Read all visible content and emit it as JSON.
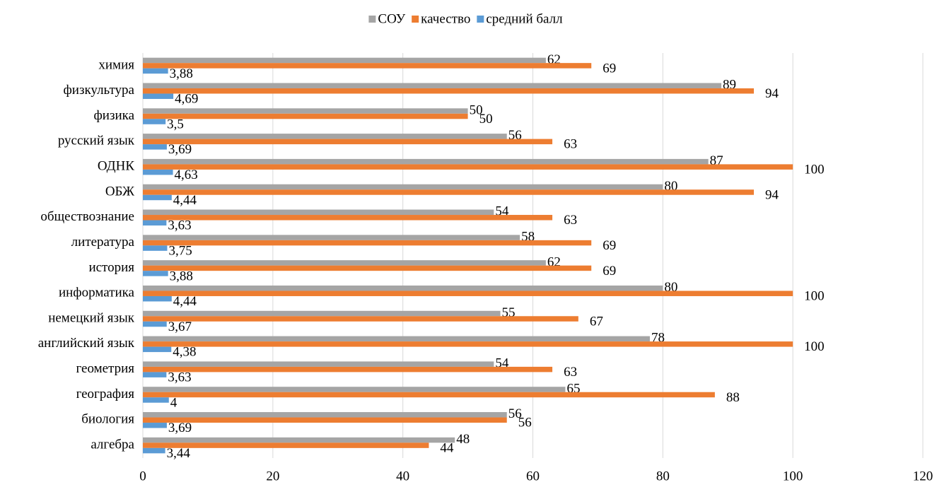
{
  "chart_data": {
    "type": "hbar",
    "categories": [
      "алгебра",
      "биология",
      "география",
      "геометрия",
      "английский язык",
      "немецкий язык",
      "информатика",
      "история",
      "литература",
      "обществознание",
      "ОБЖ",
      "ОДНК",
      "русский язык",
      "физика",
      "физкультура",
      "химия"
    ],
    "series": [
      {
        "name": "СОУ",
        "color": "#a5a5a5",
        "values": [
          48,
          56,
          65,
          54,
          78,
          55,
          80,
          62,
          58,
          54,
          80,
          87,
          56,
          50,
          89,
          62
        ]
      },
      {
        "name": "качество",
        "color": "#ed7d31",
        "values": [
          44,
          56,
          88,
          63,
          100,
          67,
          100,
          69,
          69,
          63,
          94,
          100,
          63,
          50,
          94,
          69
        ]
      },
      {
        "name": "средний балл",
        "color": "#5b9bd5",
        "values": [
          3.44,
          3.69,
          4,
          3.63,
          4.38,
          3.67,
          4.44,
          3.88,
          3.75,
          3.63,
          4.44,
          4.63,
          3.69,
          3.5,
          4.69,
          3.88
        ],
        "value_labels": [
          "3,44",
          "3,69",
          "4",
          "3,63",
          "4,38",
          "3,67",
          "4,44",
          "3,88",
          "3,75",
          "3,63",
          "4,44",
          "4,63",
          "3,69",
          "3,5",
          "4,69",
          "3,88"
        ]
      }
    ],
    "xlim": [
      0,
      120
    ],
    "xticks": [
      0,
      20,
      40,
      60,
      80,
      100,
      120
    ],
    "grid": true,
    "legend": "top"
  }
}
